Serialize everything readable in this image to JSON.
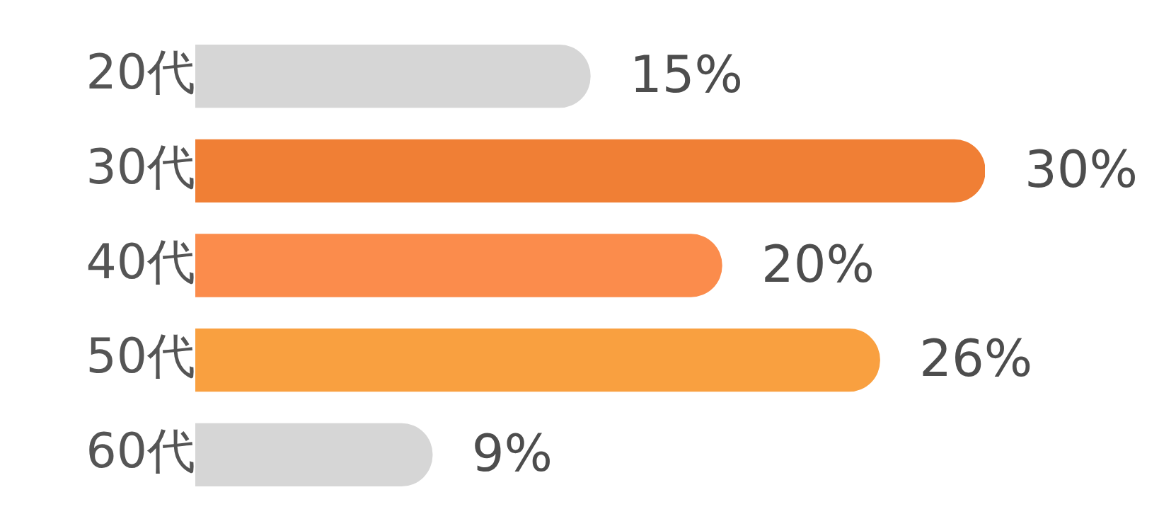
{
  "chart_data": {
    "type": "bar",
    "orientation": "horizontal",
    "categories": [
      "20代",
      "30代",
      "40代",
      "50代",
      "60代"
    ],
    "values": [
      15,
      30,
      20,
      26,
      9
    ],
    "colors": [
      "#d6d6d6",
      "#f07f35",
      "#fb8c4c",
      "#f9a040",
      "#d6d6d6"
    ],
    "value_labels": [
      "15%",
      "30%",
      "20%",
      "26%",
      "9%"
    ],
    "grid": false,
    "legend": false
  }
}
